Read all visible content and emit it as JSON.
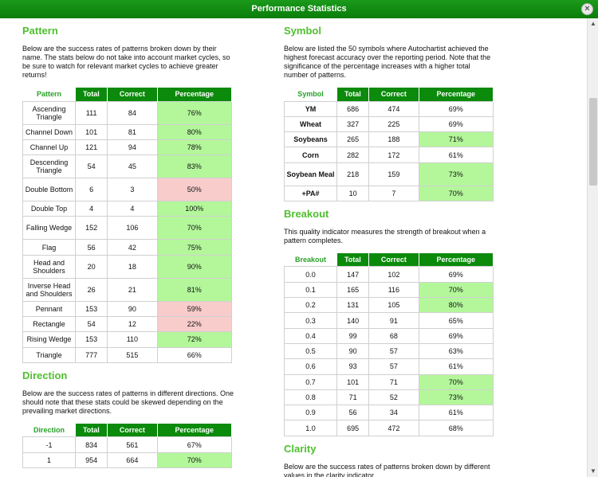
{
  "window": {
    "title": "Performance Statistics",
    "close_label": "×"
  },
  "headers": {
    "total": "Total",
    "correct": "Correct",
    "percentage": "Percentage"
  },
  "pattern": {
    "heading": "Pattern",
    "description": "Below are the success rates of patterns broken down by their name. The stats below do not take into account market cycles, so be sure to watch for relevant market cycles to achieve greater returns!",
    "first_col": "Pattern",
    "rows": [
      {
        "label": "Ascending Triangle",
        "total": "111",
        "correct": "84",
        "pct": "76%",
        "status": "good"
      },
      {
        "label": "Channel Down",
        "total": "101",
        "correct": "81",
        "pct": "80%",
        "status": "good"
      },
      {
        "label": "Channel Up",
        "total": "121",
        "correct": "94",
        "pct": "78%",
        "status": "good"
      },
      {
        "label": "Descending Triangle",
        "total": "54",
        "correct": "45",
        "pct": "83%",
        "status": "good"
      },
      {
        "label": "Double Bottom",
        "total": "6",
        "correct": "3",
        "pct": "50%",
        "status": "bad"
      },
      {
        "label": "Double Top",
        "total": "4",
        "correct": "4",
        "pct": "100%",
        "status": "good"
      },
      {
        "label": "Falling Wedge",
        "total": "152",
        "correct": "106",
        "pct": "70%",
        "status": "good"
      },
      {
        "label": "Flag",
        "total": "56",
        "correct": "42",
        "pct": "75%",
        "status": "good"
      },
      {
        "label": "Head and Shoulders",
        "total": "20",
        "correct": "18",
        "pct": "90%",
        "status": "good"
      },
      {
        "label": "Inverse Head and Shoulders",
        "total": "26",
        "correct": "21",
        "pct": "81%",
        "status": "good"
      },
      {
        "label": "Pennant",
        "total": "153",
        "correct": "90",
        "pct": "59%",
        "status": "bad"
      },
      {
        "label": "Rectangle",
        "total": "54",
        "correct": "12",
        "pct": "22%",
        "status": "bad"
      },
      {
        "label": "Rising Wedge",
        "total": "153",
        "correct": "110",
        "pct": "72%",
        "status": "good"
      },
      {
        "label": "Triangle",
        "total": "777",
        "correct": "515",
        "pct": "66%",
        "status": "none"
      }
    ]
  },
  "direction": {
    "heading": "Direction",
    "description": "Below are the success rates of patterns in different directions. One should note that these stats could be skewed depending on the prevailing market directions.",
    "first_col": "Direction",
    "rows": [
      {
        "label": "-1",
        "total": "834",
        "correct": "561",
        "pct": "67%",
        "status": "none"
      },
      {
        "label": "1",
        "total": "954",
        "correct": "664",
        "pct": "70%",
        "status": "good"
      }
    ]
  },
  "symbol": {
    "heading": "Symbol",
    "description": "Below are listed the 50 symbols where Autochartist achieved the highest forecast accuracy over the reporting period. Note that the significance of the percentage increases with a higher total number of patterns.",
    "first_col": "Symbol",
    "rows": [
      {
        "label": "YM",
        "total": "686",
        "correct": "474",
        "pct": "69%",
        "status": "none"
      },
      {
        "label": "Wheat",
        "total": "327",
        "correct": "225",
        "pct": "69%",
        "status": "none"
      },
      {
        "label": "Soybeans",
        "total": "265",
        "correct": "188",
        "pct": "71%",
        "status": "good"
      },
      {
        "label": "Corn",
        "total": "282",
        "correct": "172",
        "pct": "61%",
        "status": "none"
      },
      {
        "label": "Soybean Meal",
        "total": "218",
        "correct": "159",
        "pct": "73%",
        "status": "good"
      },
      {
        "label": "+PA#",
        "total": "10",
        "correct": "7",
        "pct": "70%",
        "status": "good"
      }
    ]
  },
  "breakout": {
    "heading": "Breakout",
    "description": "This quality indicator measures the strength of breakout when a pattern completes.",
    "first_col": "Breakout",
    "rows": [
      {
        "label": "0.0",
        "total": "147",
        "correct": "102",
        "pct": "69%",
        "status": "none"
      },
      {
        "label": "0.1",
        "total": "165",
        "correct": "116",
        "pct": "70%",
        "status": "good"
      },
      {
        "label": "0.2",
        "total": "131",
        "correct": "105",
        "pct": "80%",
        "status": "good"
      },
      {
        "label": "0.3",
        "total": "140",
        "correct": "91",
        "pct": "65%",
        "status": "none"
      },
      {
        "label": "0.4",
        "total": "99",
        "correct": "68",
        "pct": "69%",
        "status": "none"
      },
      {
        "label": "0.5",
        "total": "90",
        "correct": "57",
        "pct": "63%",
        "status": "none"
      },
      {
        "label": "0.6",
        "total": "93",
        "correct": "57",
        "pct": "61%",
        "status": "none"
      },
      {
        "label": "0.7",
        "total": "101",
        "correct": "71",
        "pct": "70%",
        "status": "good"
      },
      {
        "label": "0.8",
        "total": "71",
        "correct": "52",
        "pct": "73%",
        "status": "good"
      },
      {
        "label": "0.9",
        "total": "56",
        "correct": "34",
        "pct": "61%",
        "status": "none"
      },
      {
        "label": "1.0",
        "total": "695",
        "correct": "472",
        "pct": "68%",
        "status": "none"
      }
    ]
  },
  "clarity": {
    "heading": "Clarity",
    "description": "Below are the success rates of patterns broken down by different values in the clarity indicator."
  },
  "colors": {
    "accent": "#0b8a0b",
    "heading": "#4fbf2f",
    "good": "#b3f79a",
    "bad": "#f9cccc"
  }
}
